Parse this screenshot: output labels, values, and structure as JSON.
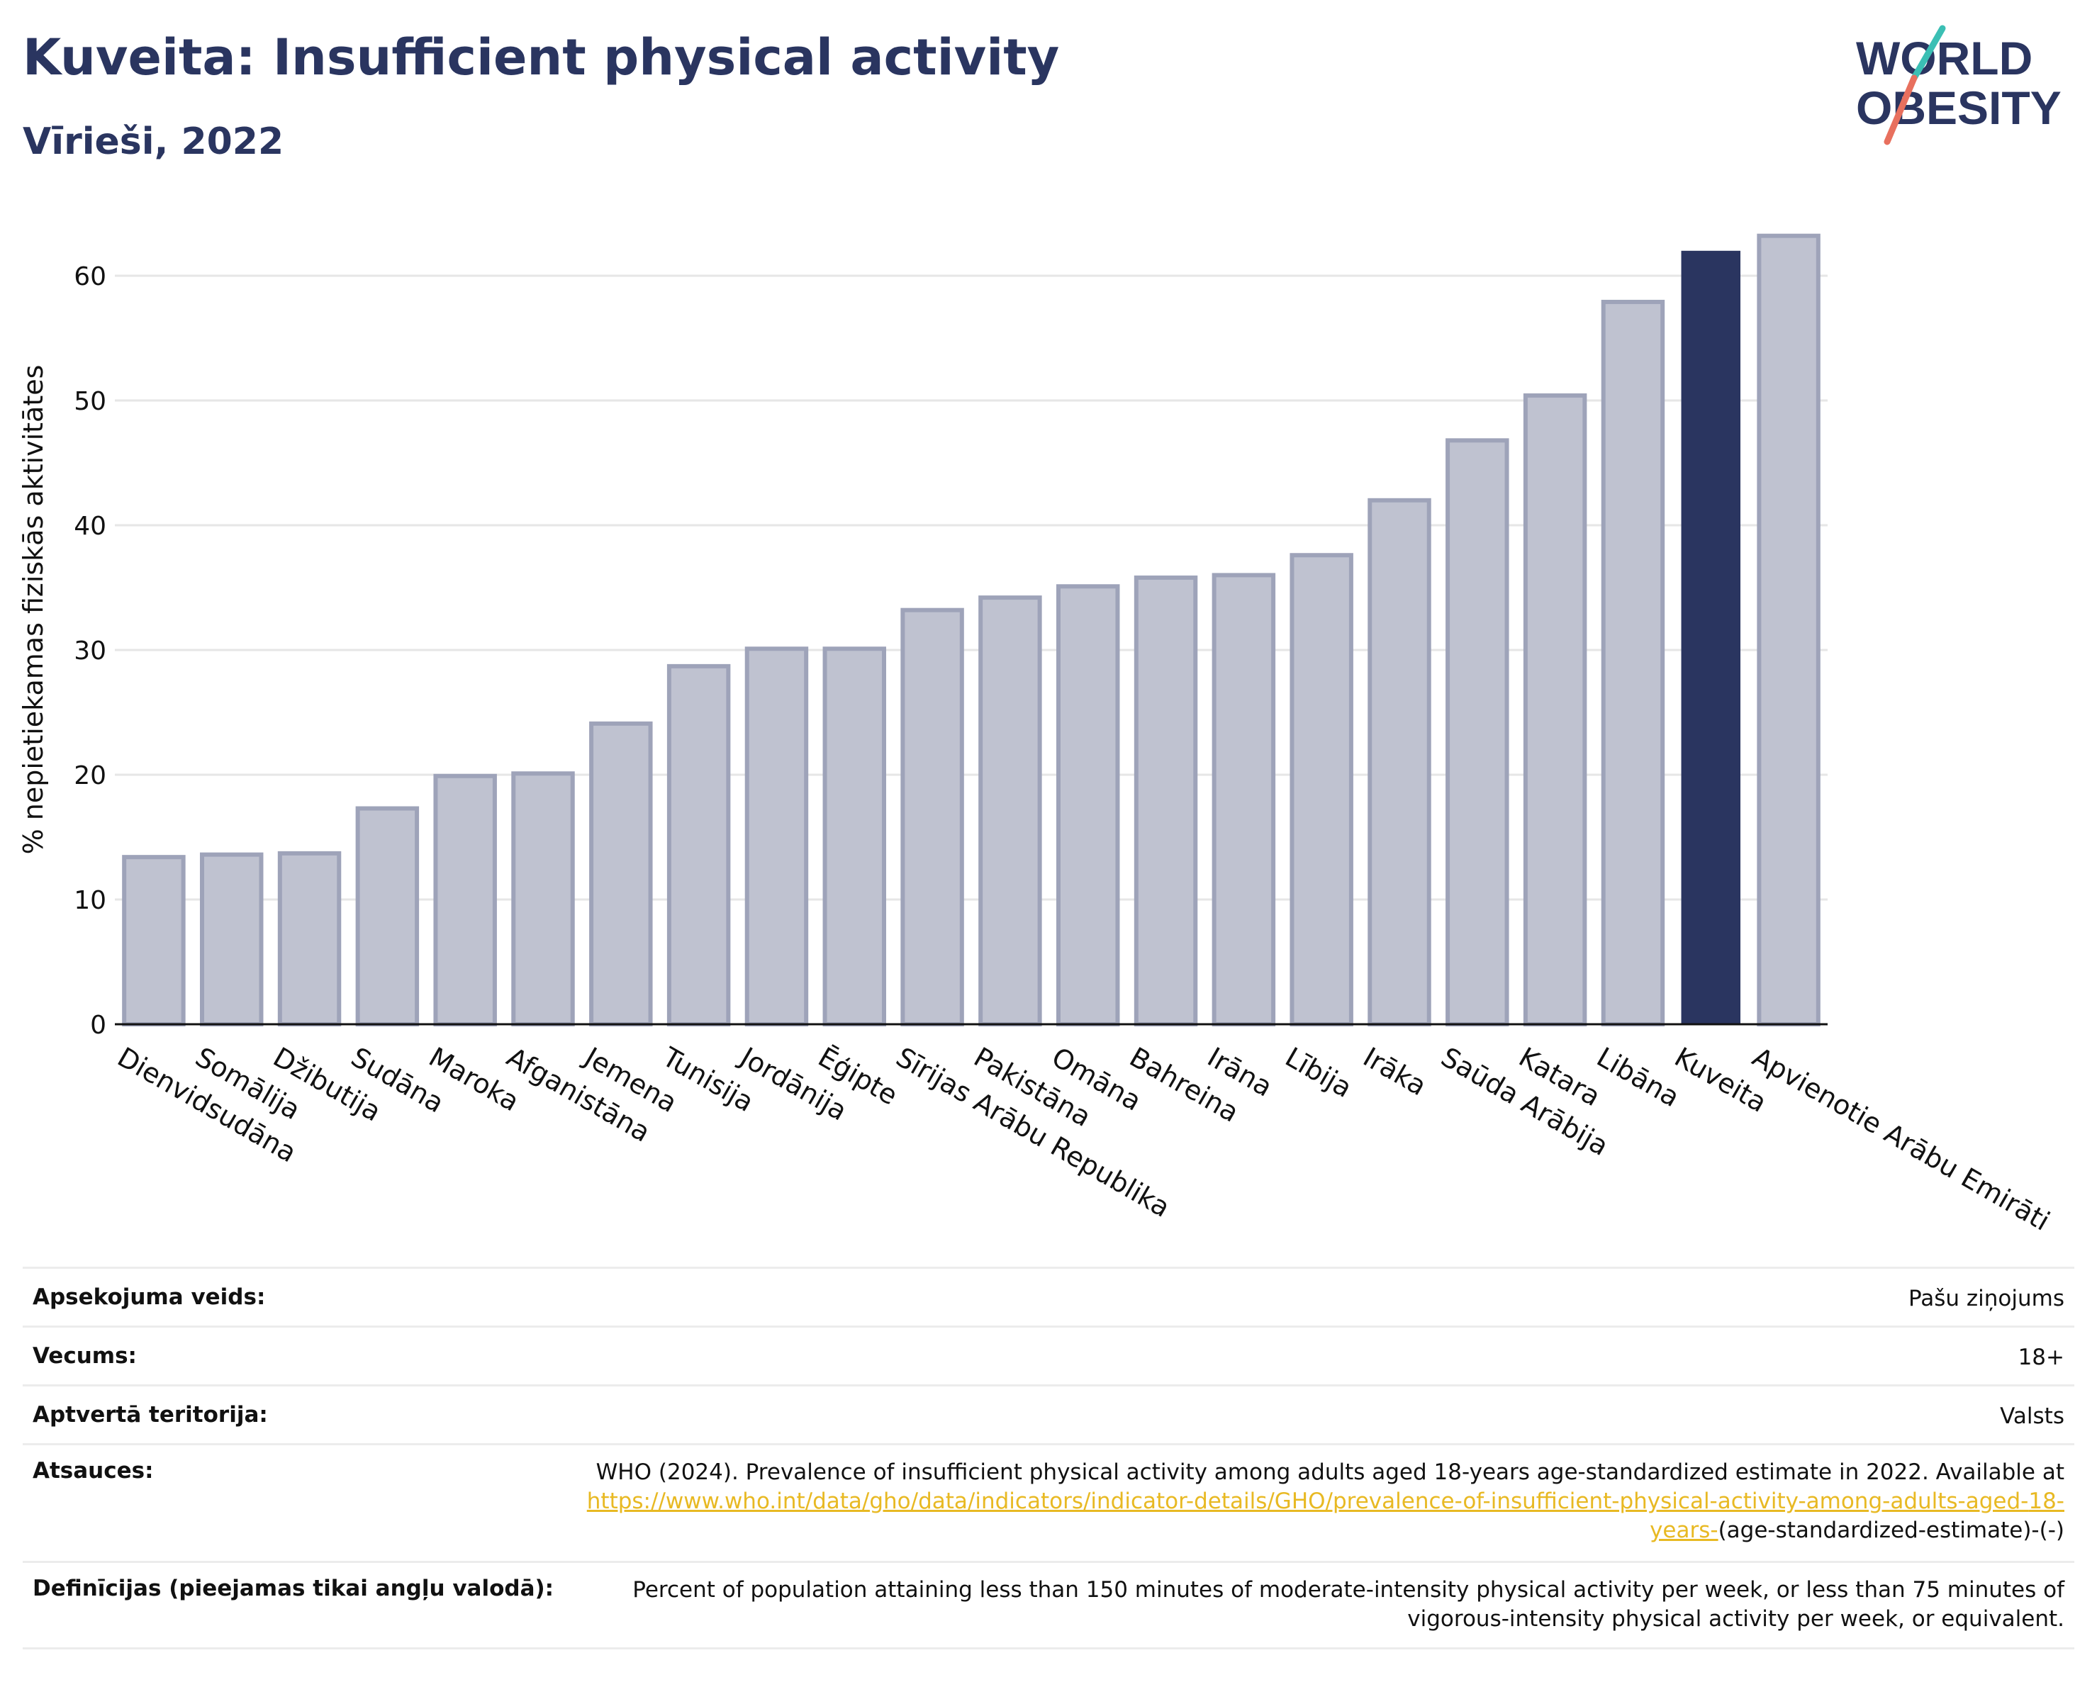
{
  "header": {
    "title": "Kuveita: Insufficient physical activity",
    "subtitle": "Vīrieši, 2022"
  },
  "logo": {
    "line1": "WORLD",
    "line2": "OBESITY",
    "text_color": "#2a3560",
    "slash_top_color": "#3bbfb4",
    "slash_bottom_color": "#e8705e"
  },
  "colors": {
    "bar_default": "#bfc2d0",
    "bar_default_stroke": "#9ea3b9",
    "bar_highlight": "#2a3560",
    "title": "#2a3560",
    "link": "#e8b923"
  },
  "chart_data": {
    "type": "bar",
    "title": "Kuveita: Insufficient physical activity",
    "subtitle": "Vīrieši, 2022",
    "xlabel": "",
    "ylabel": "% nepietiekamas fiziskās aktivitātes",
    "ylim": [
      0,
      65
    ],
    "yticks": [
      0,
      10,
      20,
      30,
      40,
      50,
      60
    ],
    "grid": true,
    "highlight": "Kuveita",
    "categories": [
      "Dienvidsudāna",
      "Somālija",
      "Džibutija",
      "Sudāna",
      "Maroka",
      "Afganistāna",
      "Jemena",
      "Tunisija",
      "Jordānija",
      "Ēģipte",
      "Sīrijas Arābu Republika",
      "Pakistāna",
      "Omāna",
      "Bahreina",
      "Irāna",
      "Lībija",
      "Irāka",
      "Saūda Arābija",
      "Katara",
      "Libāna",
      "Kuveita",
      "Apvienotie Arābu Emirāti"
    ],
    "values": [
      13.4,
      13.6,
      13.7,
      17.3,
      19.9,
      20.1,
      24.1,
      28.7,
      30.1,
      30.1,
      33.2,
      34.2,
      35.1,
      35.8,
      36.0,
      37.6,
      42.0,
      46.8,
      50.4,
      57.9,
      62.0,
      63.2
    ]
  },
  "info": {
    "survey_label": "Apsekojuma veids:",
    "survey_value": "Pašu ziņojums",
    "age_label": "Vecums:",
    "age_value": "18+",
    "coverage_label": "Aptvertā teritorija:",
    "coverage_value": "Valsts",
    "refs_label": "Atsauces:",
    "refs_text": "WHO (2024). Prevalence of insufficient physical activity among adults aged 18-years age-standardized estimate in 2022. Available at",
    "refs_link_1": "https://www.who.int/data/gho/data/indicators/indicator-details/GHO/prevalence-of-insufficient-physical-activity-among-adults-aged-",
    "refs_link_2": "18-years-",
    "refs_tail": "(age-standardized-estimate)-(-)",
    "defs_label": "Definīcijas (pieejamas tikai angļu valodā):",
    "defs_value": "Percent of population attaining less than 150 minutes of moderate-intensity physical activity per week, or less than 75 minutes of vigorous-intensity physical activity per week, or equivalent."
  }
}
